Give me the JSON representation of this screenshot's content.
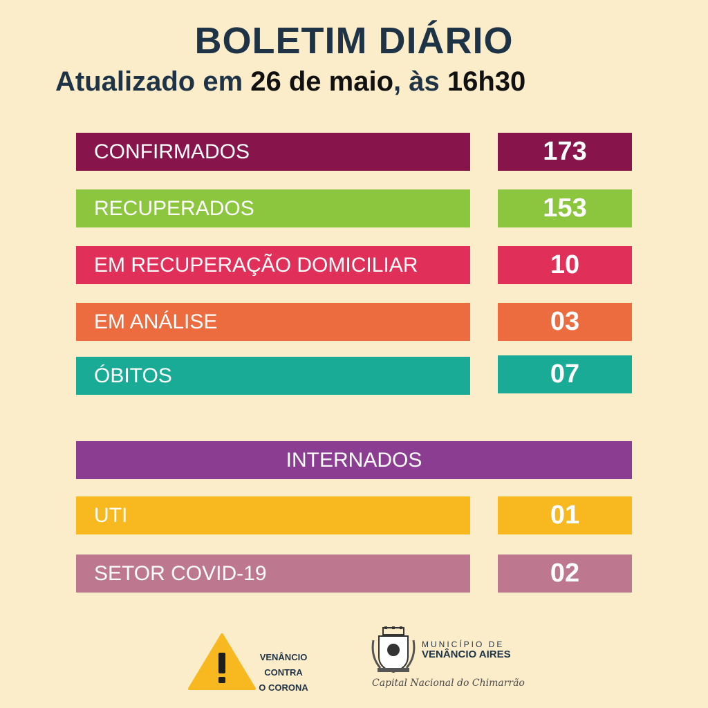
{
  "header": {
    "title": "BOLETIM DIÁRIO",
    "subtitle_prefix": "Atualizado em ",
    "date": "26 de maio",
    "subtitle_mid": ", às ",
    "time": "16h30"
  },
  "stats": [
    {
      "label": "CONFIRMADOS",
      "value": "173",
      "color": "#87144b"
    },
    {
      "label": "RECUPERADOS",
      "value": "153",
      "color": "#8cc63e"
    },
    {
      "label": "EM RECUPERAÇÃO DOMICILIAR",
      "value": "10",
      "color": "#e0305a"
    },
    {
      "label": "EM ANÁLISE",
      "value": "03",
      "color": "#ec6c3f"
    },
    {
      "label": "ÓBITOS",
      "value": "07",
      "color": "#1aab97"
    }
  ],
  "internados": {
    "title": "INTERNADOS",
    "color": "#8b3d92",
    "items": [
      {
        "label": "UTI",
        "value": "01",
        "color": "#f7b91f"
      },
      {
        "label": "SETOR COVID-19",
        "value": "02",
        "color": "#bd778e"
      }
    ]
  },
  "footer": {
    "campaign_line1": "VENÂNCIO CONTRA",
    "campaign_line2": "O CORONA",
    "warning_icon": "warning-triangle-icon",
    "crest_icon": "municipal-crest-icon",
    "municipio_label": "MUNICÍPIO DE",
    "municipio_name": "VENÂNCIO AIRES",
    "slogan": "Capital Nacional do Chimarrão"
  }
}
